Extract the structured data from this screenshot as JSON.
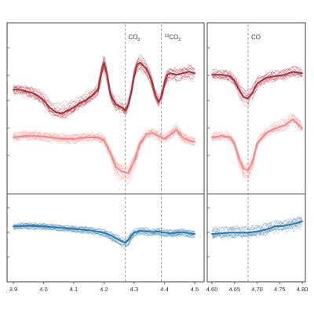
{
  "colors": {
    "dark_red": "#a8323c",
    "light_red": "#f08a8a",
    "blue": "#2f78a8",
    "frame": "#444444"
  },
  "chart_data": [
    {
      "type": "line",
      "panel": "left",
      "xlim": [
        3.9,
        4.5
      ],
      "xticks": [
        "3.9",
        "4.0",
        "4.1",
        "4.2",
        "4.3",
        "4.4",
        "4.5"
      ],
      "xtick_values": [
        3.9,
        4.0,
        4.1,
        4.2,
        4.3,
        4.4,
        4.5
      ],
      "grid": false,
      "annotations": [
        {
          "x": 4.27,
          "text": "CO",
          "subscript": "2",
          "superscript": ""
        },
        {
          "x": 4.39,
          "text": "CO",
          "subscript": "2",
          "superscript": "13"
        }
      ],
      "rows": [
        {
          "row": "top",
          "ylim": [
            0,
            1
          ],
          "series": [
            {
              "style": "mean",
              "color": "dark_red",
              "x": [
                3.9,
                3.92,
                3.94,
                3.96,
                3.98,
                4.0,
                4.02,
                4.04,
                4.06,
                4.08,
                4.1,
                4.12,
                4.14,
                4.16,
                4.18,
                4.19,
                4.2,
                4.21,
                4.22,
                4.23,
                4.24,
                4.25,
                4.26,
                4.27,
                4.28,
                4.29,
                4.3,
                4.31,
                4.32,
                4.33,
                4.34,
                4.35,
                4.36,
                4.37,
                4.38,
                4.39,
                4.4,
                4.41,
                4.42,
                4.44,
                4.46,
                4.48,
                4.5
              ],
              "y": [
                0.62,
                0.62,
                0.61,
                0.6,
                0.58,
                0.55,
                0.5,
                0.47,
                0.46,
                0.48,
                0.5,
                0.53,
                0.55,
                0.58,
                0.62,
                0.72,
                0.8,
                0.72,
                0.6,
                0.55,
                0.52,
                0.51,
                0.5,
                0.48,
                0.52,
                0.6,
                0.72,
                0.79,
                0.8,
                0.78,
                0.76,
                0.72,
                0.66,
                0.58,
                0.54,
                0.57,
                0.66,
                0.72,
                0.73,
                0.72,
                0.73,
                0.74,
                0.73
              ]
            },
            {
              "style": "mean",
              "color": "light_red",
              "x": [
                3.9,
                3.94,
                3.98,
                4.02,
                4.06,
                4.1,
                4.14,
                4.18,
                4.2,
                4.22,
                4.24,
                4.26,
                4.28,
                4.3,
                4.32,
                4.34,
                4.36,
                4.38,
                4.4,
                4.42,
                4.44,
                4.46,
                4.48,
                4.5
              ],
              "y": [
                0.3,
                0.31,
                0.31,
                0.3,
                0.29,
                0.29,
                0.3,
                0.3,
                0.28,
                0.2,
                0.1,
                0.07,
                0.06,
                0.14,
                0.26,
                0.32,
                0.33,
                0.31,
                0.29,
                0.32,
                0.35,
                0.3,
                0.28,
                0.27
              ]
            }
          ]
        },
        {
          "row": "bottom",
          "ylim": [
            0,
            1
          ],
          "series": [
            {
              "style": "mean",
              "color": "blue",
              "x": [
                3.9,
                3.95,
                4.0,
                4.05,
                4.1,
                4.15,
                4.2,
                4.22,
                4.24,
                4.26,
                4.27,
                4.28,
                4.29,
                4.3,
                4.32,
                4.34,
                4.36,
                4.38,
                4.4,
                4.42,
                4.44,
                4.46,
                4.48,
                4.5
              ],
              "y": [
                0.62,
                0.63,
                0.62,
                0.6,
                0.58,
                0.56,
                0.52,
                0.48,
                0.43,
                0.38,
                0.36,
                0.4,
                0.47,
                0.52,
                0.55,
                0.54,
                0.53,
                0.54,
                0.52,
                0.51,
                0.52,
                0.53,
                0.51,
                0.5
              ]
            }
          ]
        }
      ]
    },
    {
      "type": "line",
      "panel": "right",
      "xlim": [
        4.6,
        4.8
      ],
      "xticks": [
        "4.60",
        "4.65",
        "4.70",
        "4.75",
        "4.80"
      ],
      "xtick_values": [
        4.6,
        4.65,
        4.7,
        4.75,
        4.8
      ],
      "grid": false,
      "annotations": [
        {
          "x": 4.68,
          "text": "CO",
          "subscript": "",
          "superscript": ""
        }
      ],
      "rows": [
        {
          "row": "top",
          "ylim": [
            0,
            1
          ],
          "series": [
            {
              "style": "mean",
              "color": "dark_red",
              "x": [
                4.6,
                4.62,
                4.64,
                4.65,
                4.66,
                4.67,
                4.68,
                4.69,
                4.7,
                4.72,
                4.74,
                4.76,
                4.78,
                4.8
              ],
              "y": [
                0.72,
                0.72,
                0.71,
                0.68,
                0.62,
                0.57,
                0.56,
                0.6,
                0.66,
                0.7,
                0.71,
                0.72,
                0.74,
                0.73
              ]
            },
            {
              "style": "mean",
              "color": "light_red",
              "x": [
                4.6,
                4.62,
                4.64,
                4.65,
                4.66,
                4.67,
                4.68,
                4.69,
                4.7,
                4.72,
                4.74,
                4.76,
                4.78,
                4.8
              ],
              "y": [
                0.3,
                0.31,
                0.3,
                0.26,
                0.16,
                0.09,
                0.08,
                0.14,
                0.26,
                0.33,
                0.36,
                0.38,
                0.42,
                0.36
              ]
            }
          ]
        },
        {
          "row": "bottom",
          "ylim": [
            0,
            1
          ],
          "series": [
            {
              "style": "mean",
              "color": "blue",
              "x": [
                4.6,
                4.62,
                4.64,
                4.66,
                4.68,
                4.7,
                4.72,
                4.74,
                4.76,
                4.78,
                4.8
              ],
              "y": [
                0.5,
                0.51,
                0.52,
                0.52,
                0.52,
                0.54,
                0.57,
                0.62,
                0.63,
                0.66,
                0.7
              ]
            }
          ]
        }
      ]
    }
  ]
}
